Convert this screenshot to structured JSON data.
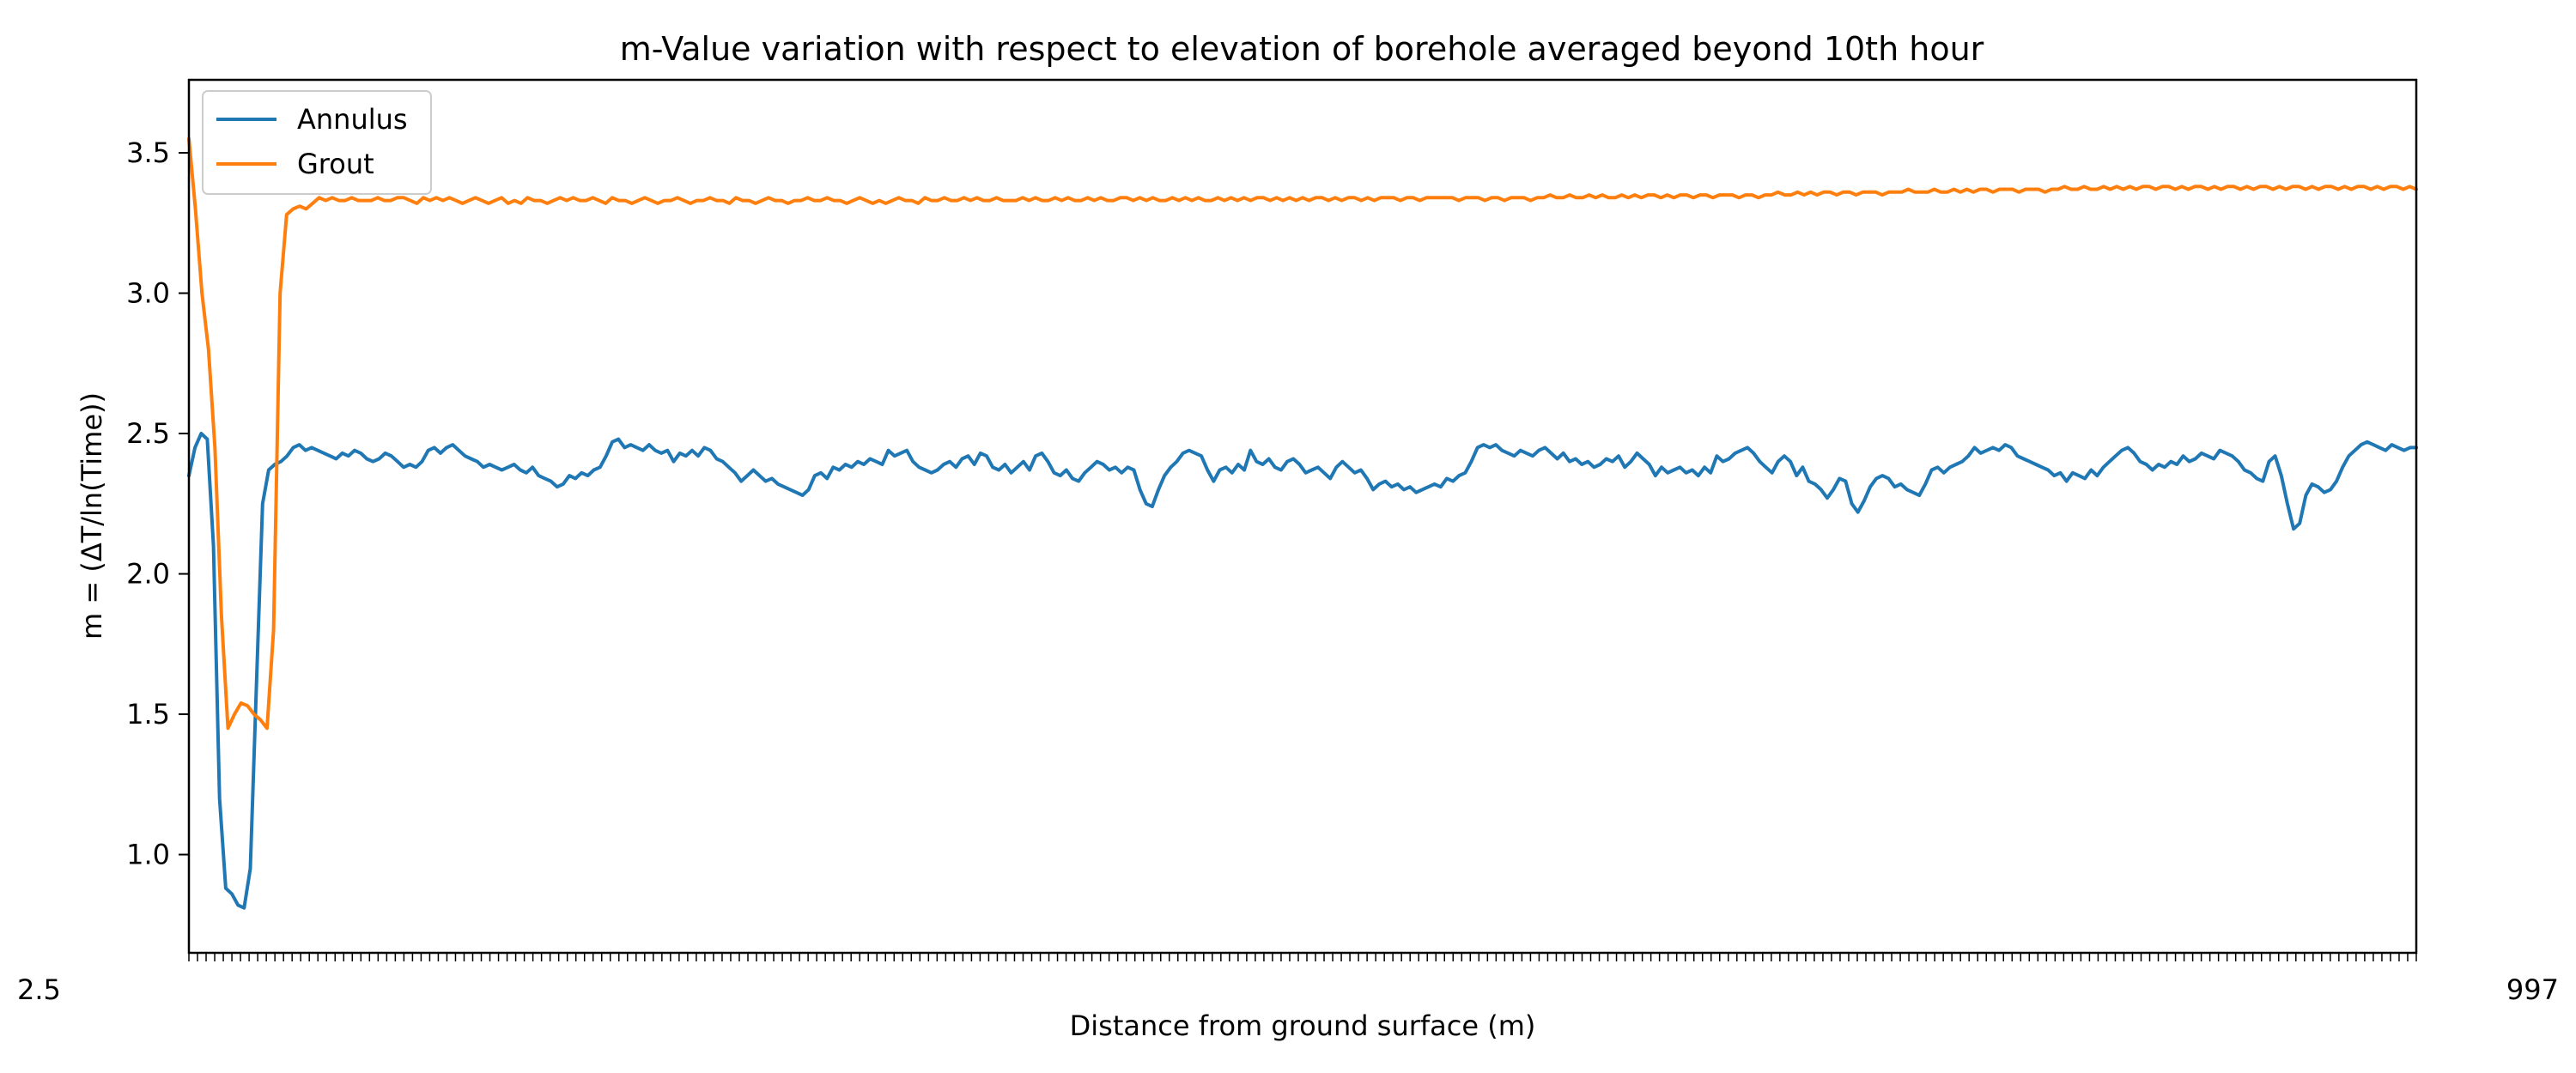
{
  "chart_data": {
    "type": "line",
    "title": "m-Value variation with respect to elevation of borehole averaged beyond 10th hour",
    "xlabel": "Distance from ground surface (m)",
    "ylabel": "m = (ΔT/ln(Time))",
    "x_tick_first": "2.5",
    "x_tick_last": "997",
    "x_tick_count": 260,
    "ylim": [
      0.65,
      3.76
    ],
    "yticks": [
      1.0,
      1.5,
      2.0,
      2.5,
      3.0,
      3.5
    ],
    "ytick_labels": [
      "1.0",
      "1.5",
      "2.0",
      "2.5",
      "3.0",
      "3.5"
    ],
    "grid": false,
    "legend_position": "upper-left",
    "series": [
      {
        "name": "Annulus",
        "color": "#1f77b4",
        "values": [
          2.35,
          2.45,
          2.5,
          2.48,
          2.1,
          1.2,
          0.88,
          0.86,
          0.82,
          0.81,
          0.95,
          1.6,
          2.25,
          2.37,
          2.39,
          2.4,
          2.42,
          2.45,
          2.46,
          2.44,
          2.45,
          2.44,
          2.43,
          2.42,
          2.41,
          2.43,
          2.42,
          2.44,
          2.43,
          2.41,
          2.4,
          2.41,
          2.43,
          2.42,
          2.4,
          2.38,
          2.39,
          2.38,
          2.4,
          2.44,
          2.45,
          2.43,
          2.45,
          2.46,
          2.44,
          2.42,
          2.41,
          2.4,
          2.38,
          2.39,
          2.38,
          2.37,
          2.38,
          2.39,
          2.37,
          2.36,
          2.38,
          2.35,
          2.34,
          2.33,
          2.31,
          2.32,
          2.35,
          2.34,
          2.36,
          2.35,
          2.37,
          2.38,
          2.42,
          2.47,
          2.48,
          2.45,
          2.46,
          2.45,
          2.44,
          2.46,
          2.44,
          2.43,
          2.44,
          2.4,
          2.43,
          2.42,
          2.44,
          2.42,
          2.45,
          2.44,
          2.41,
          2.4,
          2.38,
          2.36,
          2.33,
          2.35,
          2.37,
          2.35,
          2.33,
          2.34,
          2.32,
          2.31,
          2.3,
          2.29,
          2.28,
          2.3,
          2.35,
          2.36,
          2.34,
          2.38,
          2.37,
          2.39,
          2.38,
          2.4,
          2.39,
          2.41,
          2.4,
          2.39,
          2.44,
          2.42,
          2.43,
          2.44,
          2.4,
          2.38,
          2.37,
          2.36,
          2.37,
          2.39,
          2.4,
          2.38,
          2.41,
          2.42,
          2.39,
          2.43,
          2.42,
          2.38,
          2.37,
          2.39,
          2.36,
          2.38,
          2.4,
          2.37,
          2.42,
          2.43,
          2.4,
          2.36,
          2.35,
          2.37,
          2.34,
          2.33,
          2.36,
          2.38,
          2.4,
          2.39,
          2.37,
          2.38,
          2.36,
          2.38,
          2.37,
          2.3,
          2.25,
          2.24,
          2.3,
          2.35,
          2.38,
          2.4,
          2.43,
          2.44,
          2.43,
          2.42,
          2.37,
          2.33,
          2.37,
          2.38,
          2.36,
          2.39,
          2.37,
          2.44,
          2.4,
          2.39,
          2.41,
          2.38,
          2.37,
          2.4,
          2.41,
          2.39,
          2.36,
          2.37,
          2.38,
          2.36,
          2.34,
          2.38,
          2.4,
          2.38,
          2.36,
          2.37,
          2.34,
          2.3,
          2.32,
          2.33,
          2.31,
          2.32,
          2.3,
          2.31,
          2.29,
          2.3,
          2.31,
          2.32,
          2.31,
          2.34,
          2.33,
          2.35,
          2.36,
          2.4,
          2.45,
          2.46,
          2.45,
          2.46,
          2.44,
          2.43,
          2.42,
          2.44,
          2.43,
          2.42,
          2.44,
          2.45,
          2.43,
          2.41,
          2.43,
          2.4,
          2.41,
          2.39,
          2.4,
          2.38,
          2.39,
          2.41,
          2.4,
          2.42,
          2.38,
          2.4,
          2.43,
          2.41,
          2.39,
          2.35,
          2.38,
          2.36,
          2.37,
          2.38,
          2.36,
          2.37,
          2.35,
          2.38,
          2.36,
          2.42,
          2.4,
          2.41,
          2.43,
          2.44,
          2.45,
          2.43,
          2.4,
          2.38,
          2.36,
          2.4,
          2.42,
          2.4,
          2.35,
          2.38,
          2.33,
          2.32,
          2.3,
          2.27,
          2.3,
          2.34,
          2.33,
          2.25,
          2.22,
          2.26,
          2.31,
          2.34,
          2.35,
          2.34,
          2.31,
          2.32,
          2.3,
          2.29,
          2.28,
          2.32,
          2.37,
          2.38,
          2.36,
          2.38,
          2.39,
          2.4,
          2.42,
          2.45,
          2.43,
          2.44,
          2.45,
          2.44,
          2.46,
          2.45,
          2.42,
          2.41,
          2.4,
          2.39,
          2.38,
          2.37,
          2.35,
          2.36,
          2.33,
          2.36,
          2.35,
          2.34,
          2.37,
          2.35,
          2.38,
          2.4,
          2.42,
          2.44,
          2.45,
          2.43,
          2.4,
          2.39,
          2.37,
          2.39,
          2.38,
          2.4,
          2.39,
          2.42,
          2.4,
          2.41,
          2.43,
          2.42,
          2.41,
          2.44,
          2.43,
          2.42,
          2.4,
          2.37,
          2.36,
          2.34,
          2.33,
          2.4,
          2.42,
          2.35,
          2.25,
          2.16,
          2.18,
          2.28,
          2.32,
          2.31,
          2.29,
          2.3,
          2.33,
          2.38,
          2.42,
          2.44,
          2.46,
          2.47,
          2.46,
          2.45,
          2.44,
          2.46,
          2.45,
          2.44,
          2.45,
          2.45
        ]
      },
      {
        "name": "Grout",
        "color": "#ff7f0e",
        "values": [
          3.55,
          3.3,
          3.0,
          2.8,
          2.45,
          1.85,
          1.45,
          1.5,
          1.54,
          1.53,
          1.5,
          1.48,
          1.45,
          1.8,
          3.0,
          3.28,
          3.3,
          3.31,
          3.3,
          3.32,
          3.34,
          3.33,
          3.34,
          3.33,
          3.33,
          3.34,
          3.33,
          3.33,
          3.33,
          3.34,
          3.33,
          3.33,
          3.34,
          3.34,
          3.33,
          3.32,
          3.34,
          3.33,
          3.34,
          3.33,
          3.34,
          3.33,
          3.32,
          3.33,
          3.34,
          3.33,
          3.32,
          3.33,
          3.34,
          3.32,
          3.33,
          3.32,
          3.34,
          3.33,
          3.33,
          3.32,
          3.33,
          3.34,
          3.33,
          3.34,
          3.33,
          3.33,
          3.34,
          3.33,
          3.32,
          3.34,
          3.33,
          3.33,
          3.32,
          3.33,
          3.34,
          3.33,
          3.32,
          3.33,
          3.33,
          3.34,
          3.33,
          3.32,
          3.33,
          3.33,
          3.34,
          3.33,
          3.33,
          3.32,
          3.34,
          3.33,
          3.33,
          3.32,
          3.33,
          3.34,
          3.33,
          3.33,
          3.32,
          3.33,
          3.33,
          3.34,
          3.33,
          3.33,
          3.34,
          3.33,
          3.33,
          3.32,
          3.33,
          3.34,
          3.33,
          3.32,
          3.33,
          3.32,
          3.33,
          3.34,
          3.33,
          3.33,
          3.32,
          3.34,
          3.33,
          3.33,
          3.34,
          3.33,
          3.33,
          3.34,
          3.33,
          3.34,
          3.33,
          3.33,
          3.34,
          3.33,
          3.33,
          3.33,
          3.34,
          3.33,
          3.34,
          3.33,
          3.33,
          3.34,
          3.33,
          3.34,
          3.33,
          3.33,
          3.34,
          3.33,
          3.34,
          3.33,
          3.33,
          3.34,
          3.34,
          3.33,
          3.34,
          3.33,
          3.34,
          3.33,
          3.33,
          3.34,
          3.33,
          3.34,
          3.33,
          3.34,
          3.33,
          3.33,
          3.34,
          3.33,
          3.34,
          3.33,
          3.34,
          3.33,
          3.34,
          3.34,
          3.33,
          3.34,
          3.33,
          3.34,
          3.33,
          3.34,
          3.33,
          3.34,
          3.34,
          3.33,
          3.34,
          3.33,
          3.34,
          3.34,
          3.33,
          3.34,
          3.33,
          3.34,
          3.34,
          3.34,
          3.33,
          3.34,
          3.34,
          3.33,
          3.34,
          3.34,
          3.34,
          3.34,
          3.34,
          3.33,
          3.34,
          3.34,
          3.34,
          3.33,
          3.34,
          3.34,
          3.33,
          3.34,
          3.34,
          3.34,
          3.33,
          3.34,
          3.34,
          3.35,
          3.34,
          3.34,
          3.35,
          3.34,
          3.34,
          3.35,
          3.34,
          3.35,
          3.34,
          3.34,
          3.35,
          3.34,
          3.35,
          3.34,
          3.35,
          3.35,
          3.34,
          3.35,
          3.34,
          3.35,
          3.35,
          3.34,
          3.35,
          3.35,
          3.34,
          3.35,
          3.35,
          3.35,
          3.34,
          3.35,
          3.35,
          3.34,
          3.35,
          3.35,
          3.36,
          3.35,
          3.35,
          3.36,
          3.35,
          3.36,
          3.35,
          3.36,
          3.36,
          3.35,
          3.36,
          3.36,
          3.35,
          3.36,
          3.36,
          3.36,
          3.35,
          3.36,
          3.36,
          3.36,
          3.37,
          3.36,
          3.36,
          3.36,
          3.37,
          3.36,
          3.36,
          3.37,
          3.36,
          3.37,
          3.36,
          3.37,
          3.37,
          3.36,
          3.37,
          3.37,
          3.37,
          3.36,
          3.37,
          3.37,
          3.37,
          3.36,
          3.37,
          3.37,
          3.38,
          3.37,
          3.37,
          3.38,
          3.37,
          3.37,
          3.38,
          3.37,
          3.38,
          3.37,
          3.38,
          3.37,
          3.38,
          3.38,
          3.37,
          3.38,
          3.38,
          3.37,
          3.38,
          3.37,
          3.38,
          3.38,
          3.37,
          3.38,
          3.37,
          3.38,
          3.38,
          3.37,
          3.38,
          3.37,
          3.38,
          3.38,
          3.37,
          3.38,
          3.37,
          3.38,
          3.38,
          3.37,
          3.38,
          3.37,
          3.38,
          3.38,
          3.37,
          3.38,
          3.37,
          3.38,
          3.38,
          3.37,
          3.38,
          3.37,
          3.38,
          3.38,
          3.37,
          3.38,
          3.37
        ]
      }
    ]
  }
}
